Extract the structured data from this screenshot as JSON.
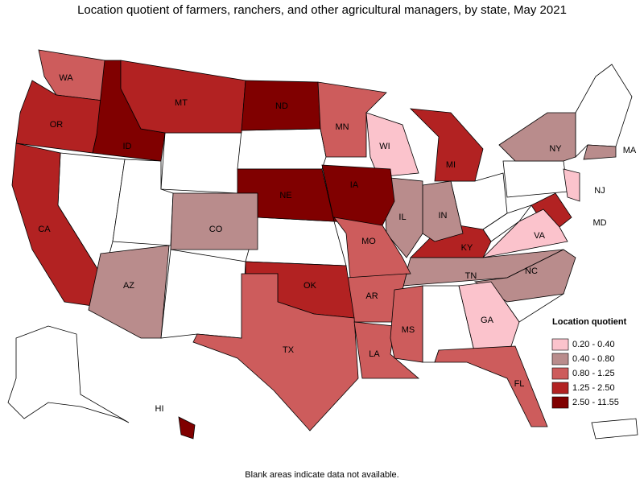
{
  "title": "Location quotient of farmers, ranchers, and other agricultural managers, by state, May 2021",
  "legend": {
    "title": "Location quotient",
    "items": [
      {
        "label": "0.20 - 0.40",
        "color": "#fbc3cc"
      },
      {
        "label": "0.40 - 0.80",
        "color": "#b98c8c"
      },
      {
        "label": "0.80 - 1.25",
        "color": "#cd5c5c"
      },
      {
        "label": "1.25 - 2.50",
        "color": "#b22222"
      },
      {
        "label": "2.50 - 11.55",
        "color": "#800000"
      }
    ]
  },
  "states": [
    {
      "label": "WA",
      "class": 2
    },
    {
      "label": "OR",
      "class": 3
    },
    {
      "label": "CA",
      "class": 3
    },
    {
      "label": "ID",
      "class": 4
    },
    {
      "label": "MT",
      "class": 3
    },
    {
      "label": "ND",
      "class": 4
    },
    {
      "label": "MN",
      "class": 2
    },
    {
      "label": "WI",
      "class": 0
    },
    {
      "label": "MI",
      "class": 3
    },
    {
      "label": "NY",
      "class": 1
    },
    {
      "label": "MA",
      "class": 1
    },
    {
      "label": "NJ",
      "class": 0
    },
    {
      "label": "MD",
      "class": 3
    },
    {
      "label": "VA",
      "class": 0
    },
    {
      "label": "KY",
      "class": 3
    },
    {
      "label": "TN",
      "class": 1
    },
    {
      "label": "NC",
      "class": 1
    },
    {
      "label": "IN",
      "class": 1
    },
    {
      "label": "IL",
      "class": 1
    },
    {
      "label": "IA",
      "class": 4
    },
    {
      "label": "NE",
      "class": 4
    },
    {
      "label": "CO",
      "class": 1
    },
    {
      "label": "AZ",
      "class": 1
    },
    {
      "label": "MO",
      "class": 2
    },
    {
      "label": "AR",
      "class": 2
    },
    {
      "label": "OK",
      "class": 3
    },
    {
      "label": "TX",
      "class": 2
    },
    {
      "label": "LA",
      "class": 2
    },
    {
      "label": "MS",
      "class": 2
    },
    {
      "label": "GA",
      "class": 0
    },
    {
      "label": "FL",
      "class": 2
    },
    {
      "label": "HI",
      "class": 4
    }
  ],
  "note": "Blank areas indicate data not available."
}
